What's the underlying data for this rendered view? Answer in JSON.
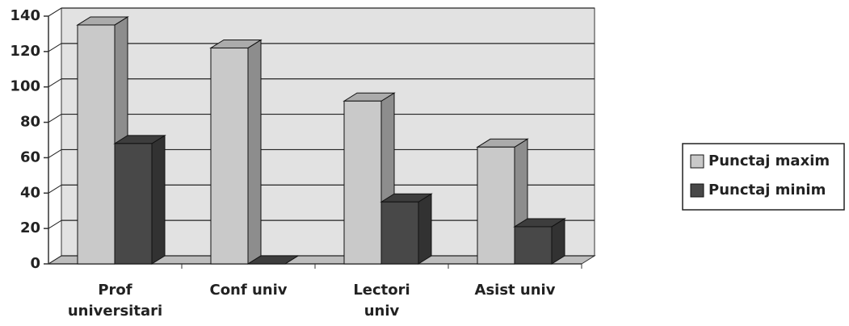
{
  "chart_data": {
    "type": "bar3d",
    "categories": [
      "Prof universitari",
      "Conf univ",
      "Lectori univ",
      "Asist univ"
    ],
    "series": [
      {
        "name": "Punctaj maxim",
        "color": "#c9c9c9",
        "values": [
          135,
          122,
          92,
          66
        ]
      },
      {
        "name": "Punctaj minim",
        "color": "#484848",
        "values": [
          68,
          0,
          35,
          21
        ]
      }
    ],
    "ylim": [
      0,
      140
    ],
    "yticks": [
      0,
      20,
      40,
      60,
      80,
      100,
      120,
      140
    ],
    "grid": true,
    "legend": "right"
  }
}
